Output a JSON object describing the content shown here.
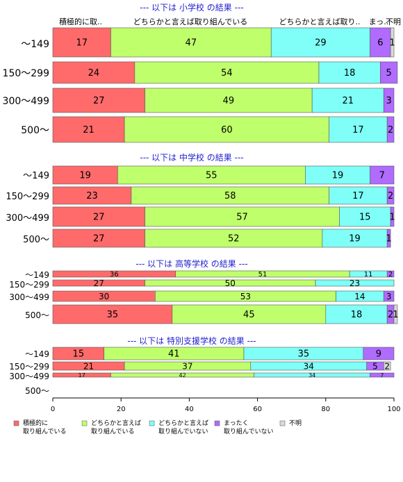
{
  "chart_data": {
    "type": "bar",
    "stacked": true,
    "orientation": "horizontal",
    "xlim": [
      0,
      100
    ],
    "x_ticks": [
      "0",
      "20",
      "40",
      "60",
      "80",
      "100"
    ],
    "series": [
      {
        "name": "積極的に\n取り組んでいる",
        "color": "#ff6b6b"
      },
      {
        "name": "どちらかと言えば\n取り組んでいる",
        "color": "#bfff6b"
      },
      {
        "name": "どちらかと言えば\n取り組んでいない",
        "color": "#7ffff7"
      },
      {
        "name": "まったく\n取り組んでいない",
        "color": "#b06bff"
      },
      {
        "name": "不明",
        "color": "#d9d9d9"
      }
    ],
    "top_labels": [
      "積極的に取..",
      "どちらかと言えば取り組んでいる",
      "どちらかと言えば取り..",
      "まっ..",
      "不明"
    ],
    "panels": [
      {
        "title": "--- 以下は 小学校 の結果 ---",
        "rows": [
          {
            "category": "～149",
            "values": [
              17,
              47,
              29,
              6,
              1
            ]
          },
          {
            "category": "150～299",
            "values": [
              24,
              54,
              18,
              5,
              0
            ]
          },
          {
            "category": "300～499",
            "values": [
              27,
              49,
              21,
              3,
              0
            ]
          },
          {
            "category": "500～",
            "values": [
              21,
              60,
              17,
              2,
              0
            ]
          }
        ]
      },
      {
        "title": "--- 以下は 中学校 の結果 ---",
        "rows": [
          {
            "category": "～149",
            "values": [
              19,
              55,
              19,
              7,
              0
            ]
          },
          {
            "category": "150～299",
            "values": [
              23,
              58,
              17,
              2,
              0
            ]
          },
          {
            "category": "300～499",
            "values": [
              27,
              57,
              15,
              1,
              0
            ]
          },
          {
            "category": "500～",
            "values": [
              27,
              52,
              19,
              1,
              0
            ]
          }
        ]
      },
      {
        "title": "--- 以下は 高等学校 の結果 ---",
        "rows": [
          {
            "category": "～149",
            "values": [
              36,
              51,
              11,
              2,
              0
            ]
          },
          {
            "category": "150～299",
            "values": [
              27,
              50,
              23,
              0,
              0
            ]
          },
          {
            "category": "300～499",
            "values": [
              30,
              53,
              14,
              3,
              0
            ]
          },
          {
            "category": "500～",
            "values": [
              35,
              45,
              18,
              2,
              1
            ]
          }
        ]
      },
      {
        "title": "--- 以下は 特別支援学校 の結果 ---",
        "rows": [
          {
            "category": "～149",
            "values": [
              15,
              41,
              35,
              9,
              0
            ]
          },
          {
            "category": "150～299",
            "values": [
              21,
              37,
              34,
              5,
              2
            ]
          },
          {
            "category": "300～499",
            "values": [
              17,
              42,
              34,
              7,
              0
            ]
          },
          {
            "category": "500～",
            "values": []
          }
        ]
      }
    ]
  }
}
